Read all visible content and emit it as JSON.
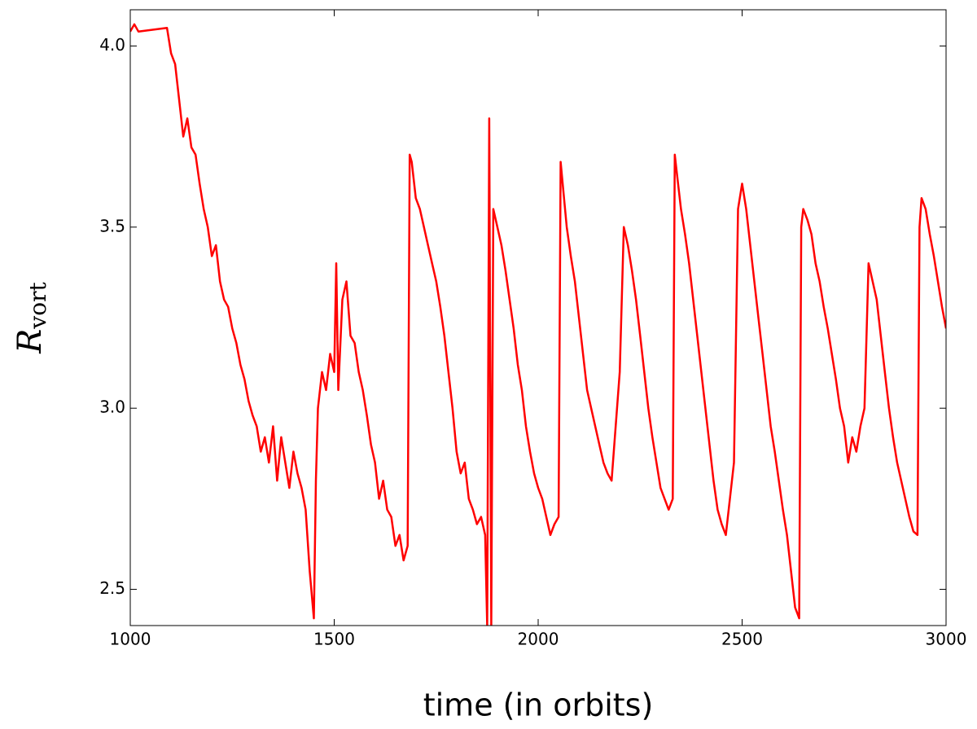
{
  "chart_data": {
    "type": "line",
    "xlabel": "time (in orbits)",
    "ylabel": "R",
    "ylabel_subscript": "vort",
    "xlim": [
      1000,
      3000
    ],
    "xticks": [
      1000,
      1500,
      2000,
      2500,
      3000
    ],
    "ylim": [
      2.4,
      4.1
    ],
    "yticks": [
      {
        "value": 2.5,
        "label": "2.5"
      },
      {
        "value": 3,
        "label": "3.0"
      },
      {
        "value": 3.5,
        "label": "3.5"
      },
      {
        "value": 4,
        "label": "4.0"
      }
    ],
    "grid": false,
    "series": [
      {
        "color": "#ff0000",
        "x": [
          1000,
          1010,
          1020,
          1090,
          1100,
          1110,
          1120,
          1130,
          1140,
          1150,
          1160,
          1170,
          1180,
          1190,
          1200,
          1210,
          1220,
          1230,
          1240,
          1250,
          1260,
          1270,
          1280,
          1290,
          1300,
          1310,
          1320,
          1330,
          1340,
          1350,
          1360,
          1370,
          1380,
          1390,
          1400,
          1410,
          1420,
          1430,
          1440,
          1450,
          1455,
          1460,
          1470,
          1480,
          1490,
          1500,
          1505,
          1510,
          1520,
          1530,
          1540,
          1550,
          1560,
          1570,
          1580,
          1590,
          1600,
          1610,
          1620,
          1630,
          1640,
          1650,
          1660,
          1670,
          1680,
          1685,
          1690,
          1700,
          1710,
          1720,
          1730,
          1740,
          1750,
          1760,
          1770,
          1780,
          1790,
          1800,
          1810,
          1820,
          1830,
          1840,
          1850,
          1860,
          1870,
          1875,
          1880,
          1885,
          1890,
          1900,
          1910,
          1920,
          1930,
          1940,
          1950,
          1960,
          1970,
          1980,
          1990,
          2000,
          2010,
          2020,
          2030,
          2040,
          2050,
          2055,
          2060,
          2070,
          2080,
          2090,
          2100,
          2110,
          2120,
          2130,
          2140,
          2150,
          2160,
          2170,
          2180,
          2190,
          2200,
          2210,
          2220,
          2230,
          2240,
          2250,
          2260,
          2270,
          2280,
          2290,
          2300,
          2310,
          2320,
          2330,
          2335,
          2340,
          2350,
          2360,
          2370,
          2380,
          2390,
          2400,
          2410,
          2420,
          2430,
          2440,
          2450,
          2460,
          2470,
          2480,
          2490,
          2500,
          2510,
          2520,
          2530,
          2540,
          2550,
          2560,
          2570,
          2580,
          2590,
          2600,
          2610,
          2620,
          2630,
          2640,
          2645,
          2650,
          2660,
          2670,
          2680,
          2690,
          2700,
          2710,
          2720,
          2730,
          2740,
          2750,
          2760,
          2770,
          2780,
          2790,
          2800,
          2810,
          2820,
          2830,
          2840,
          2850,
          2860,
          2870,
          2880,
          2890,
          2900,
          2910,
          2920,
          2930,
          2935,
          2940,
          2950,
          2960,
          2970,
          2980,
          2990,
          3000
        ],
        "values": [
          4.04,
          4.06,
          4.04,
          4.05,
          3.98,
          3.95,
          3.85,
          3.75,
          3.8,
          3.72,
          3.7,
          3.62,
          3.55,
          3.5,
          3.42,
          3.45,
          3.35,
          3.3,
          3.28,
          3.22,
          3.18,
          3.12,
          3.08,
          3.02,
          2.98,
          2.95,
          2.88,
          2.92,
          2.85,
          2.95,
          2.8,
          2.92,
          2.85,
          2.78,
          2.88,
          2.82,
          2.78,
          2.72,
          2.55,
          2.42,
          2.8,
          3.0,
          3.1,
          3.05,
          3.15,
          3.1,
          3.4,
          3.05,
          3.3,
          3.35,
          3.2,
          3.18,
          3.1,
          3.05,
          2.98,
          2.9,
          2.85,
          2.75,
          2.8,
          2.72,
          2.7,
          2.62,
          2.65,
          2.58,
          2.62,
          3.7,
          3.68,
          3.58,
          3.55,
          3.5,
          3.45,
          3.4,
          3.35,
          3.28,
          3.2,
          3.1,
          3.0,
          2.88,
          2.82,
          2.85,
          2.75,
          2.72,
          2.68,
          2.7,
          2.65,
          2.4,
          3.8,
          2.4,
          3.55,
          3.5,
          3.45,
          3.38,
          3.3,
          3.22,
          3.12,
          3.05,
          2.95,
          2.88,
          2.82,
          2.78,
          2.75,
          2.7,
          2.65,
          2.68,
          2.7,
          3.68,
          3.62,
          3.5,
          3.42,
          3.35,
          3.25,
          3.15,
          3.05,
          3.0,
          2.95,
          2.9,
          2.85,
          2.82,
          2.8,
          2.95,
          3.1,
          3.5,
          3.45,
          3.38,
          3.3,
          3.2,
          3.1,
          3.0,
          2.92,
          2.85,
          2.78,
          2.75,
          2.72,
          2.75,
          3.7,
          3.65,
          3.55,
          3.48,
          3.4,
          3.3,
          3.2,
          3.1,
          3.0,
          2.9,
          2.8,
          2.72,
          2.68,
          2.65,
          2.75,
          2.85,
          3.55,
          3.62,
          3.55,
          3.45,
          3.35,
          3.25,
          3.15,
          3.05,
          2.95,
          2.88,
          2.8,
          2.72,
          2.65,
          2.55,
          2.45,
          2.42,
          3.5,
          3.55,
          3.52,
          3.48,
          3.4,
          3.35,
          3.28,
          3.22,
          3.15,
          3.08,
          3.0,
          2.95,
          2.85,
          2.92,
          2.88,
          2.95,
          3.0,
          3.4,
          3.35,
          3.3,
          3.2,
          3.1,
          3.0,
          2.92,
          2.85,
          2.8,
          2.75,
          2.7,
          2.66,
          2.65,
          3.5,
          3.58,
          3.55,
          3.48,
          3.42,
          3.35,
          3.28,
          3.22
        ]
      }
    ]
  }
}
